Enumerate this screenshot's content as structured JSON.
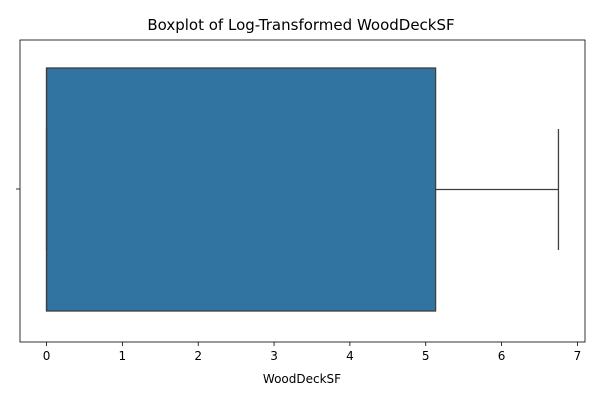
{
  "chart_data": {
    "type": "boxplot",
    "title": "Boxplot of Log-Transformed WoodDeckSF",
    "xlabel": "WoodDeckSF",
    "ylabel": "",
    "orientation": "horizontal",
    "xlim": [
      -0.35,
      7.1
    ],
    "xticks": [
      0,
      1,
      2,
      3,
      4,
      5,
      6,
      7
    ],
    "xtick_labels": [
      "0",
      "1",
      "2",
      "3",
      "4",
      "5",
      "6",
      "7"
    ],
    "grid": false,
    "box": {
      "min": 0,
      "q1": 0,
      "median": 0,
      "q3": 5.13,
      "max": 6.75
    },
    "colors": {
      "box_fill": "#3274a1",
      "line": "#3f3f3f"
    }
  }
}
